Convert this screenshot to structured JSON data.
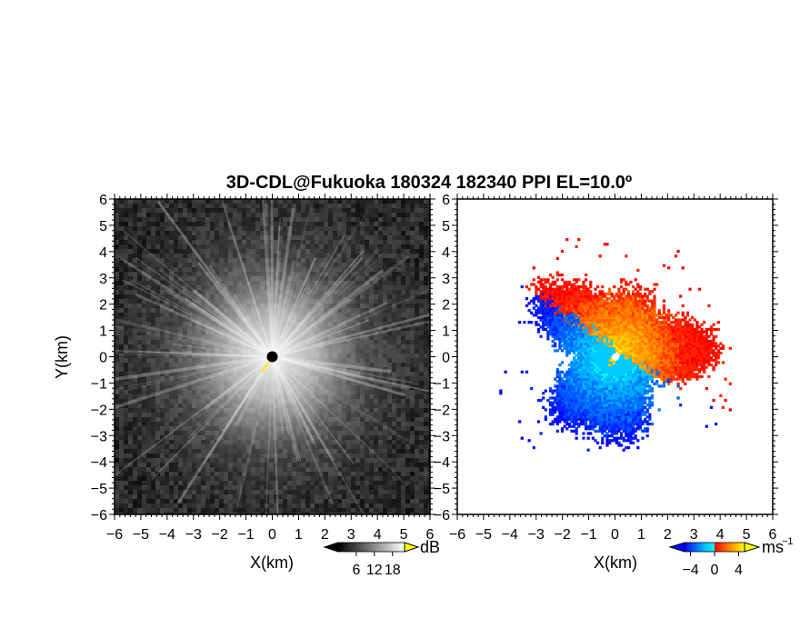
{
  "chart_data": [
    {
      "type": "heatmap",
      "title": "3D-CDL@Fukuoka 180324 182340 PPI EL=10.0º",
      "panel": "left",
      "xlabel": "X(km)",
      "ylabel": "Y(km)",
      "xlim": [
        -6,
        6
      ],
      "ylim": [
        -6,
        6
      ],
      "x_ticks": [
        "−6",
        "−5",
        "−4",
        "−3",
        "−2",
        "−1",
        "0",
        "1",
        "2",
        "3",
        "4",
        "5",
        "6"
      ],
      "y_ticks": [
        "−6",
        "−5",
        "−4",
        "−3",
        "−2",
        "−1",
        "0",
        "1",
        "2",
        "3",
        "4",
        "5",
        "6"
      ],
      "colorbar": {
        "unit": "dB",
        "range": [
          0,
          22
        ],
        "ticks": [
          "6",
          "12",
          "18"
        ],
        "tick_values": [
          6,
          12,
          18
        ],
        "colors": [
          "#000000",
          "#ffffff"
        ],
        "overflow_color": "#ffff00"
      },
      "field": "signal intensity, radial streaks brightest near origin, decaying outward"
    },
    {
      "type": "heatmap",
      "panel": "right",
      "xlabel": "X(km)",
      "xlim": [
        -6,
        6
      ],
      "ylim": [
        -6,
        6
      ],
      "x_ticks": [
        "−6",
        "−5",
        "−4",
        "−3",
        "−2",
        "−1",
        "0",
        "1",
        "2",
        "3",
        "4",
        "5",
        "6"
      ],
      "y_ticks": [
        "−6",
        "−5",
        "−4",
        "−3",
        "−2",
        "−1",
        "0",
        "1",
        "2",
        "3",
        "4",
        "5",
        "6"
      ],
      "colorbar": {
        "unit": "ms",
        "unit_exp": "−1",
        "range": [
          -5,
          5
        ],
        "ticks": [
          "−4",
          "0",
          "4"
        ],
        "tick_values": [
          -4,
          0,
          4
        ],
        "colors": [
          "#0000ff",
          "#00aaff",
          "#00ffff",
          "#ff0000",
          "#ff8800",
          "#ffff00"
        ]
      },
      "field": "Doppler velocity; negative (blue) on west/south side, positive (red-yellow) on north/east side, data extent about 3.5 km radius"
    }
  ]
}
